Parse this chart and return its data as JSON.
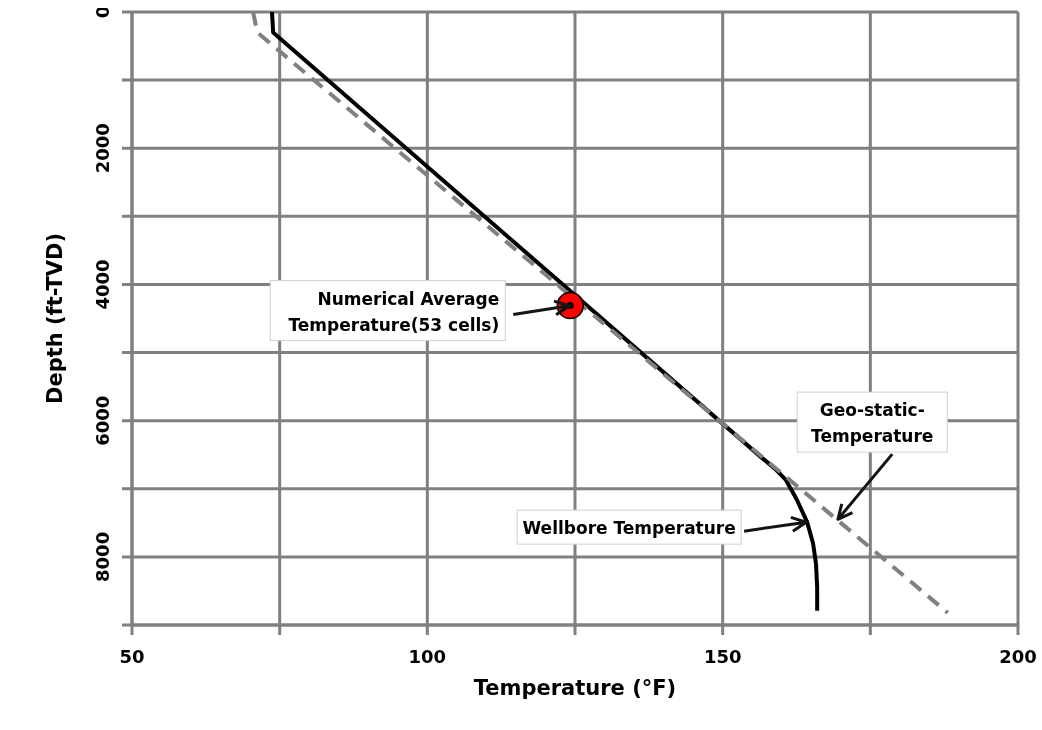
{
  "chart_data": {
    "type": "line",
    "xlabel": "Temperature (°F)",
    "ylabel": "Depth (ft-TVD)",
    "xlim": [
      50,
      200
    ],
    "xticks": [
      50,
      {
        "value": 75,
        "label": null
      },
      100,
      {
        "value": 125,
        "label": null
      },
      150,
      {
        "value": 175,
        "label": null
      },
      200
    ],
    "ylim": [
      9000,
      0
    ],
    "yticks": [
      0,
      {
        "value": 1000,
        "label": null
      },
      2000,
      {
        "value": 3000,
        "label": null
      },
      4000,
      {
        "value": 5000,
        "label": null
      },
      6000,
      {
        "value": 7000,
        "label": null
      },
      8000,
      {
        "value": 9000,
        "label": null
      }
    ],
    "grid": true,
    "series": [
      {
        "color": "#000000",
        "line_style": "solid",
        "x": [
          73.7,
          73.9,
          156.7,
          158.8,
          160.7,
          162.5,
          164.3,
          165.3,
          165.8,
          166,
          166
        ],
        "values": [
          0,
          300,
          6550,
          6700,
          6870,
          7150,
          7490,
          7800,
          8100,
          8450,
          8790
        ]
      },
      {
        "color": "#808080",
        "line_style": "dashed",
        "x": [
          70.5,
          71.2,
          188.1
        ],
        "values": [
          0,
          300,
          8820
        ]
      },
      {
        "type": "scatter",
        "color": "#ff0000",
        "marker": "circle",
        "x": [
          124.2
        ],
        "values": [
          4310
        ]
      }
    ],
    "annotations": [
      {
        "text": "Numerical Average\nTemperature(53 cells)",
        "x": 124.2,
        "y": 4310
      },
      {
        "text": "Wellbore Temperature",
        "x": 164.3,
        "y": 7490
      },
      {
        "text": "Geo-static-\nTemperature",
        "x": 169.4,
        "y": 7460
      }
    ]
  }
}
